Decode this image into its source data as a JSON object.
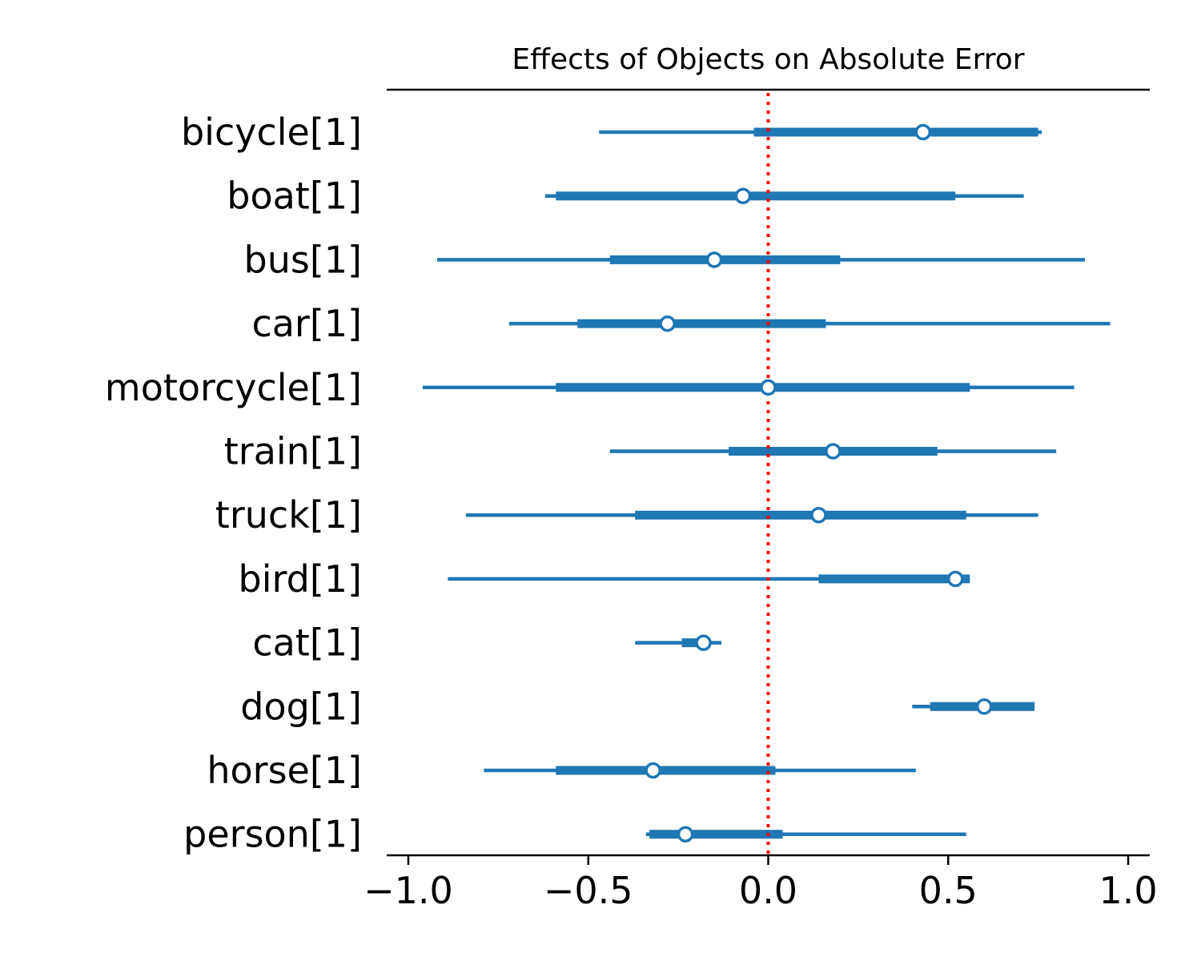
{
  "chart_data": {
    "type": "forest",
    "title": "Effects of Objects on Absolute Error",
    "xlabel": "",
    "ylabel": "",
    "xlim": [
      -1.06,
      1.06
    ],
    "xticks": [
      -1.0,
      -0.5,
      0.0,
      0.5,
      1.0
    ],
    "xtick_labels": [
      "−1.0",
      "−0.5",
      "0.0",
      "0.5",
      "1.0"
    ],
    "reference_line": {
      "x": 0.0,
      "color": "#ff0000",
      "style": "dotted"
    },
    "series_color": "#1f77b4",
    "grid": false,
    "categories": [
      "bicycle[1]",
      "boat[1]",
      "bus[1]",
      "car[1]",
      "motorcycle[1]",
      "train[1]",
      "truck[1]",
      "bird[1]",
      "cat[1]",
      "dog[1]",
      "horse[1]",
      "person[1]"
    ],
    "estimates": [
      {
        "label": "bicycle[1]",
        "hdi_low": -0.47,
        "hdi_high": 0.76,
        "iqr_low": -0.04,
        "iqr_high": 0.75,
        "median": 0.43
      },
      {
        "label": "boat[1]",
        "hdi_low": -0.62,
        "hdi_high": 0.71,
        "iqr_low": -0.59,
        "iqr_high": 0.52,
        "median": -0.07
      },
      {
        "label": "bus[1]",
        "hdi_low": -0.92,
        "hdi_high": 0.88,
        "iqr_low": -0.44,
        "iqr_high": 0.2,
        "median": -0.15
      },
      {
        "label": "car[1]",
        "hdi_low": -0.72,
        "hdi_high": 0.95,
        "iqr_low": -0.53,
        "iqr_high": 0.16,
        "median": -0.28
      },
      {
        "label": "motorcycle[1]",
        "hdi_low": -0.96,
        "hdi_high": 0.85,
        "iqr_low": -0.59,
        "iqr_high": 0.56,
        "median": 0.0
      },
      {
        "label": "train[1]",
        "hdi_low": -0.44,
        "hdi_high": 0.8,
        "iqr_low": -0.11,
        "iqr_high": 0.47,
        "median": 0.18
      },
      {
        "label": "truck[1]",
        "hdi_low": -0.84,
        "hdi_high": 0.75,
        "iqr_low": -0.37,
        "iqr_high": 0.55,
        "median": 0.14
      },
      {
        "label": "bird[1]",
        "hdi_low": -0.89,
        "hdi_high": 0.56,
        "iqr_low": 0.14,
        "iqr_high": 0.56,
        "median": 0.52
      },
      {
        "label": "cat[1]",
        "hdi_low": -0.37,
        "hdi_high": -0.13,
        "iqr_low": -0.24,
        "iqr_high": -0.17,
        "median": -0.18
      },
      {
        "label": "dog[1]",
        "hdi_low": 0.4,
        "hdi_high": 0.74,
        "iqr_low": 0.45,
        "iqr_high": 0.74,
        "median": 0.6
      },
      {
        "label": "horse[1]",
        "hdi_low": -0.79,
        "hdi_high": 0.41,
        "iqr_low": -0.59,
        "iqr_high": 0.02,
        "median": -0.32
      },
      {
        "label": "person[1]",
        "hdi_low": -0.34,
        "hdi_high": 0.55,
        "iqr_low": -0.33,
        "iqr_high": 0.04,
        "median": -0.23
      }
    ]
  }
}
